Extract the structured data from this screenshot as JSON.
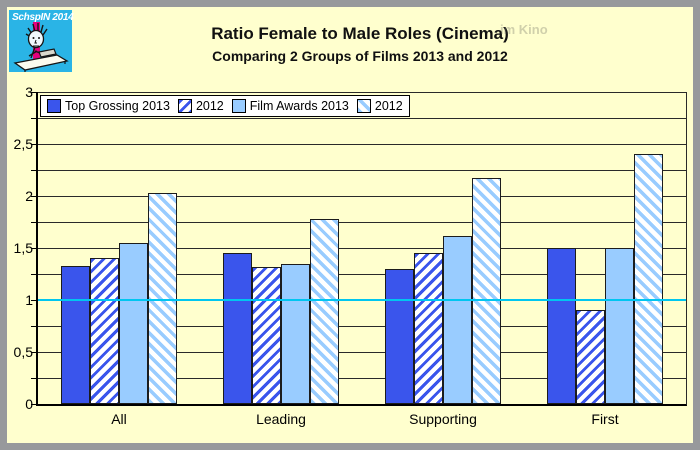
{
  "window": {
    "bg": "#ffffce",
    "border_color": "#97999c"
  },
  "logo": {
    "label": "SchspIN 2014",
    "bg": "#2ab4e6",
    "stripe_color": "#e3007d"
  },
  "header": {
    "title": "Ratio Female to Male Roles (Cinema)",
    "subtitle": "Comparing 2 Groups of Films 2013 and 2012"
  },
  "ghost_text": "im Kino",
  "chart_data": {
    "type": "bar",
    "title": "Ratio Female to Male Roles (Cinema)",
    "subtitle": "Comparing 2 Groups of Films 2013 and 2012",
    "categories": [
      "All",
      "Leading",
      "Supporting",
      "First"
    ],
    "series": [
      {
        "name": "Top Grossing 2013",
        "fill": "solid",
        "color": "#3a55ec",
        "values": [
          1.33,
          1.45,
          1.3,
          1.5
        ]
      },
      {
        "name": "2012",
        "fill": "hatch-forward",
        "color": "#3a55ec",
        "values": [
          1.4,
          1.32,
          1.45,
          0.9
        ]
      },
      {
        "name": "Film Awards 2013",
        "fill": "solid",
        "color": "#99ccff",
        "values": [
          1.55,
          1.35,
          1.62,
          1.5
        ]
      },
      {
        "name": "2012",
        "fill": "hatch-back",
        "color": "#99ccff",
        "values": [
          2.03,
          1.78,
          2.17,
          2.4
        ]
      }
    ],
    "ylim": [
      0,
      3
    ],
    "grid_step": 0.25,
    "grid": "horizontal",
    "ytick_major": [
      {
        "v": 0,
        "label": "0"
      },
      {
        "v": 0.5,
        "label": "0,5"
      },
      {
        "v": 1,
        "label": "1"
      },
      {
        "v": 1.5,
        "label": "1,5"
      },
      {
        "v": 2,
        "label": "2"
      },
      {
        "v": 2.5,
        "label": "2,5"
      },
      {
        "v": 3,
        "label": "3"
      }
    ],
    "reference_line": {
      "value": 1,
      "color": "#00c6f0"
    },
    "legend_position": "top-left",
    "bar_border_color": "#1c1c1c"
  }
}
